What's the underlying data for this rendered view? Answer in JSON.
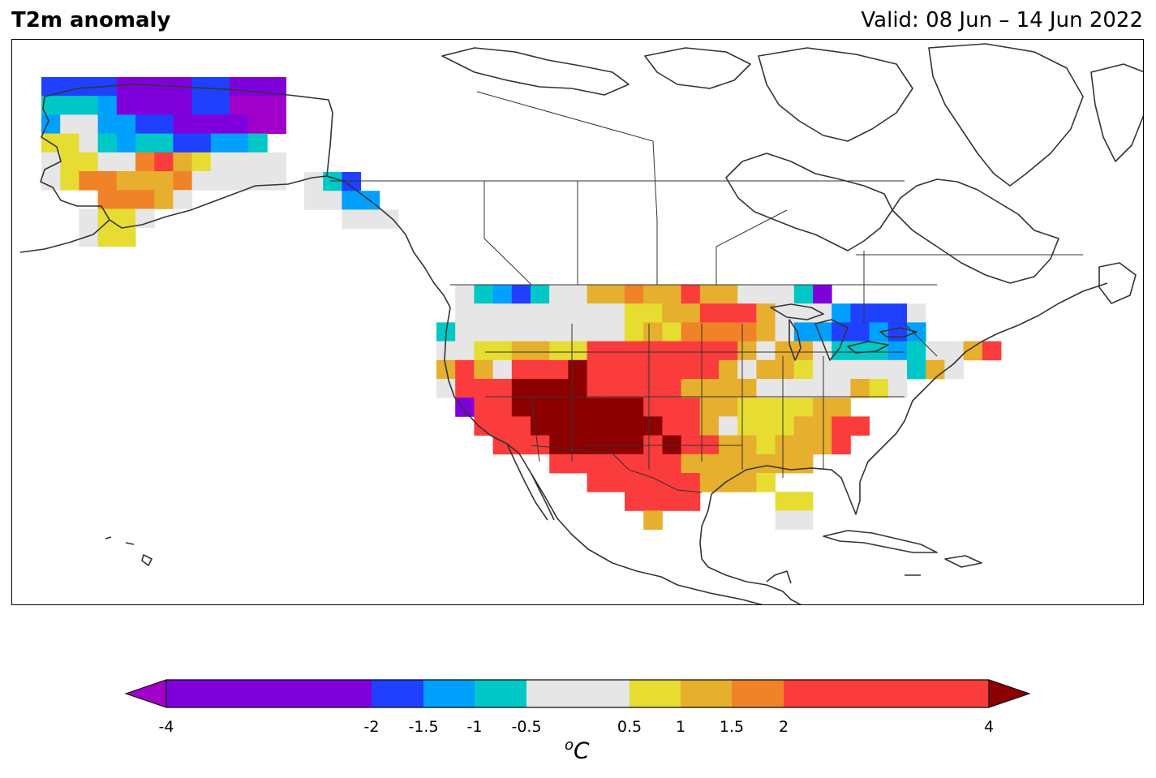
{
  "header": {
    "title": "T2m anomaly",
    "valid": "Valid: 08 Jun – 14 Jun 2022"
  },
  "colorbar": {
    "unit_prefix": "o",
    "unit": "C",
    "boundaries": [
      -4,
      -2,
      -1.5,
      -1,
      -0.5,
      0.5,
      1,
      1.5,
      2,
      4
    ],
    "tick_labels": [
      "-4",
      "-2",
      "-1.5",
      "-1",
      "-0.5",
      "0.5",
      "1",
      "1.5",
      "2",
      "4"
    ],
    "colors": [
      "#8000dc",
      "#2040ff",
      "#00a0ff",
      "#00c8c8",
      "#e6e6e6",
      "#e6dc32",
      "#e6af2d",
      "#f08228",
      "#fa3c3c"
    ],
    "under_color": "#a000c8",
    "over_color": "#8c0000"
  },
  "map": {
    "region": "North America",
    "colors": {
      "V": "#a000c8",
      "P": "#8000dc",
      "B": "#2040ff",
      "L": "#00a0ff",
      "C": "#00c8c8",
      "G": "#e6e6e6",
      "Y": "#e6dc32",
      "O": "#e6af2d",
      "N": "#f08228",
      "R": "#fa3c3c",
      "D": "#8c0000"
    }
  }
}
